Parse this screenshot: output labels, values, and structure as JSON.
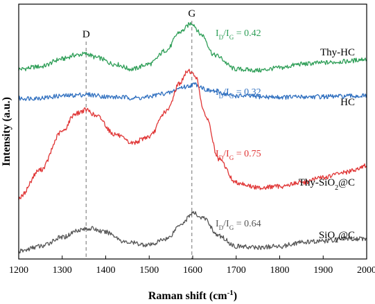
{
  "chart_data": {
    "type": "line",
    "title": "",
    "xlabel": "Raman shift (cm",
    "xlabel_sup": "-1",
    "xlabel_tail": ")",
    "ylabel": "Intensity (a.u.)",
    "xlim": [
      1200,
      2000
    ],
    "ylim": [
      0,
      1
    ],
    "x_ticks": [
      1200,
      1300,
      1400,
      1500,
      1600,
      1700,
      1800,
      1900,
      2000
    ],
    "grid": false,
    "y_tick_labels": false,
    "peak_markers": [
      {
        "label": "D",
        "x": 1355
      },
      {
        "label": "G",
        "x": 1598
      }
    ],
    "series": [
      {
        "name": "Thy-HC",
        "name_parts": [
          "Thy-HC"
        ],
        "color": "#2e9e57",
        "ratio": {
          "prefix": "I",
          "sub1": "D",
          "slash": "/I",
          "sub2": "G",
          "value": " = 0.42"
        },
        "x": [
          1200,
          1250,
          1300,
          1330,
          1355,
          1380,
          1420,
          1460,
          1500,
          1540,
          1570,
          1598,
          1620,
          1650,
          1700,
          1750,
          1800,
          1850,
          1900,
          1950,
          2000
        ],
        "values": [
          0.745,
          0.755,
          0.785,
          0.8,
          0.805,
          0.79,
          0.765,
          0.745,
          0.765,
          0.82,
          0.89,
          0.925,
          0.88,
          0.8,
          0.745,
          0.74,
          0.75,
          0.765,
          0.77,
          0.775,
          0.785
        ]
      },
      {
        "name": "HC",
        "name_parts": [
          "HC"
        ],
        "color": "#2f6fbf",
        "ratio": {
          "prefix": "I",
          "sub1": "D",
          "slash": "/I",
          "sub2": "G",
          "value": " = 0.32"
        },
        "x": [
          1200,
          1250,
          1300,
          1355,
          1420,
          1480,
          1540,
          1580,
          1605,
          1640,
          1700,
          1800,
          1900,
          2000
        ],
        "values": [
          0.63,
          0.632,
          0.64,
          0.645,
          0.635,
          0.632,
          0.65,
          0.675,
          0.685,
          0.66,
          0.64,
          0.635,
          0.637,
          0.64
        ]
      },
      {
        "name": "Thy-SiO2@C",
        "name_parts": [
          "Thy-SiO",
          "2",
          "@C"
        ],
        "color": "#e03535",
        "ratio": {
          "prefix": "I",
          "sub1": "D",
          "slash": "/I",
          "sub2": "G",
          "value": " = 0.75"
        },
        "x": [
          1200,
          1250,
          1300,
          1330,
          1355,
          1380,
          1420,
          1460,
          1500,
          1540,
          1570,
          1590,
          1605,
          1630,
          1660,
          1700,
          1750,
          1800,
          1850,
          1900,
          1950,
          2000
        ],
        "values": [
          0.24,
          0.35,
          0.5,
          0.57,
          0.585,
          0.56,
          0.49,
          0.455,
          0.48,
          0.58,
          0.69,
          0.74,
          0.72,
          0.56,
          0.39,
          0.3,
          0.28,
          0.285,
          0.3,
          0.32,
          0.34,
          0.365
        ]
      },
      {
        "name": "SiO2@C",
        "name_parts": [
          "SiO",
          "2",
          "@C"
        ],
        "color": "#555555",
        "ratio": {
          "prefix": "I",
          "sub1": "D",
          "slash": "/I",
          "sub2": "G",
          "value": " = 0.64"
        },
        "x": [
          1200,
          1250,
          1300,
          1340,
          1365,
          1400,
          1450,
          1500,
          1540,
          1575,
          1600,
          1625,
          1660,
          1700,
          1750,
          1800,
          1850,
          1900,
          1950,
          2000
        ],
        "values": [
          0.03,
          0.05,
          0.085,
          0.115,
          0.12,
          0.105,
          0.065,
          0.055,
          0.08,
          0.14,
          0.18,
          0.16,
          0.09,
          0.05,
          0.045,
          0.05,
          0.065,
          0.07,
          0.08,
          0.08
        ]
      }
    ]
  }
}
